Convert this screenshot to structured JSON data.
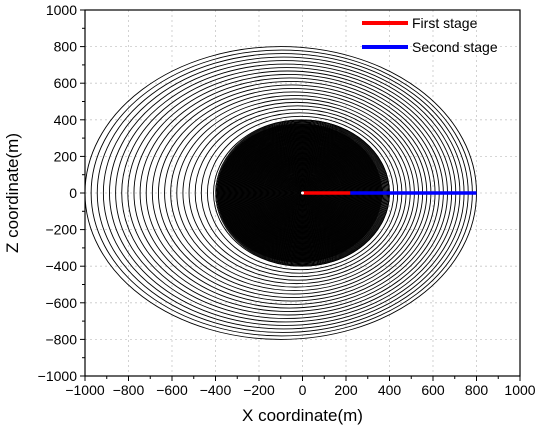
{
  "chart_data": {
    "type": "line",
    "title": "",
    "xlabel": "X coordinate(m)",
    "ylabel": "Z coordinate(m)",
    "xlim": [
      -1000,
      1000
    ],
    "ylim": [
      -1000,
      1000
    ],
    "xticks": [
      -1000,
      -800,
      -600,
      -400,
      -200,
      0,
      200,
      400,
      600,
      800,
      1000
    ],
    "yticks": [
      -1000,
      -800,
      -600,
      -400,
      -200,
      0,
      200,
      400,
      600,
      800,
      1000
    ],
    "grid": true,
    "legend_position": "top-right",
    "series": [
      {
        "name": "First stage",
        "color": "#ff0000",
        "x": [
          0,
          220
        ],
        "y": [
          0,
          0
        ]
      },
      {
        "name": "Second stage",
        "color": "#0000ff",
        "x": [
          220,
          800
        ],
        "y": [
          0,
          0
        ]
      }
    ],
    "contours": {
      "color": "#000000",
      "description_center": [
        0,
        0
      ],
      "outer_x_extent": [
        -1000,
        800
      ],
      "outer_y_extent": [
        -800,
        800
      ],
      "dense_core_radius": 400
    }
  }
}
